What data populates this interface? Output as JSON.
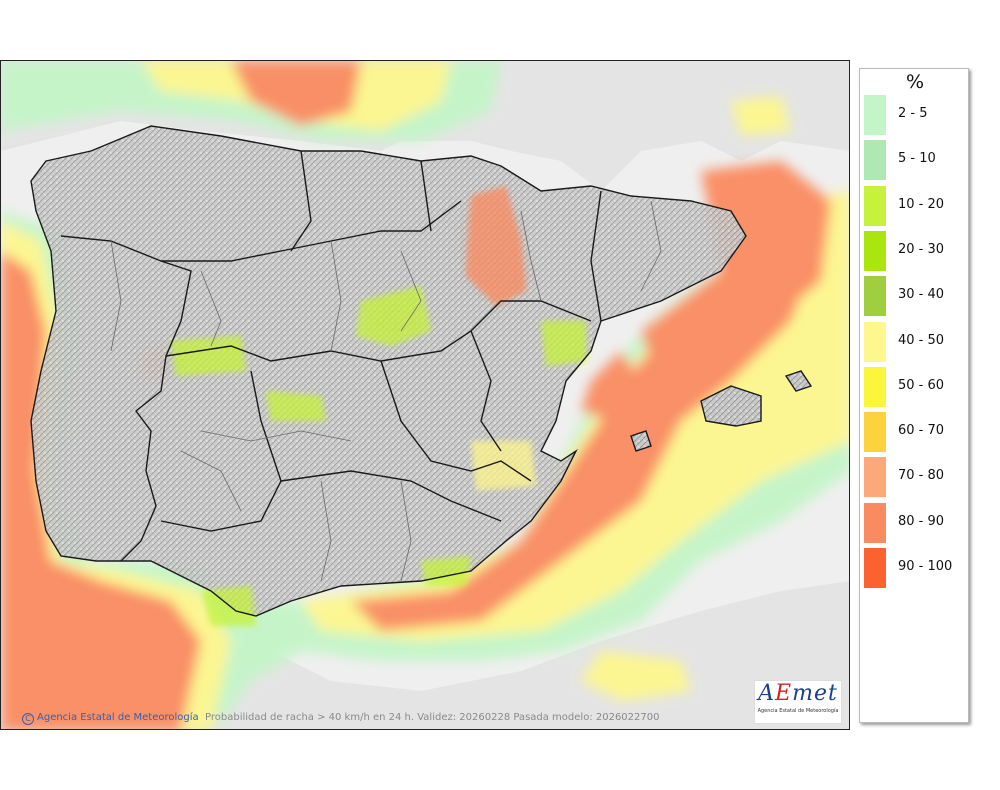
{
  "legend": {
    "unit": "%",
    "items": [
      {
        "label": "2 - 5",
        "color": "#c4f5c8"
      },
      {
        "label": "5 - 10",
        "color": "#aee9b4"
      },
      {
        "label": "10 - 20",
        "color": "#c6f23b"
      },
      {
        "label": "20 - 30",
        "color": "#abe510"
      },
      {
        "label": "30 - 40",
        "color": "#9fcf3f"
      },
      {
        "label": "40 - 50",
        "color": "#fdf78e"
      },
      {
        "label": "50 - 60",
        "color": "#fbf53c"
      },
      {
        "label": "60 - 70",
        "color": "#fdd23f"
      },
      {
        "label": "70 - 80",
        "color": "#fba87a"
      },
      {
        "label": "80 - 90",
        "color": "#fa8b60"
      },
      {
        "label": "90 - 100",
        "color": "#fb6230"
      }
    ]
  },
  "footer": {
    "credit_symbol": "C",
    "credit": "Agencia Estatal de Meteorología",
    "caption": "Probabilidad de racha > 40 km/h en 24 h. Validez: 20260228 Pasada modelo: 2026022700"
  },
  "logo": {
    "word_a": "A",
    "word_e": "E",
    "word_rest": "met",
    "subtitle": "Agencia Estatal de Meteorología"
  },
  "colors": {
    "sea": "#efefef",
    "land_relief": "#b9b9b9",
    "border": "#1a1a1a"
  }
}
